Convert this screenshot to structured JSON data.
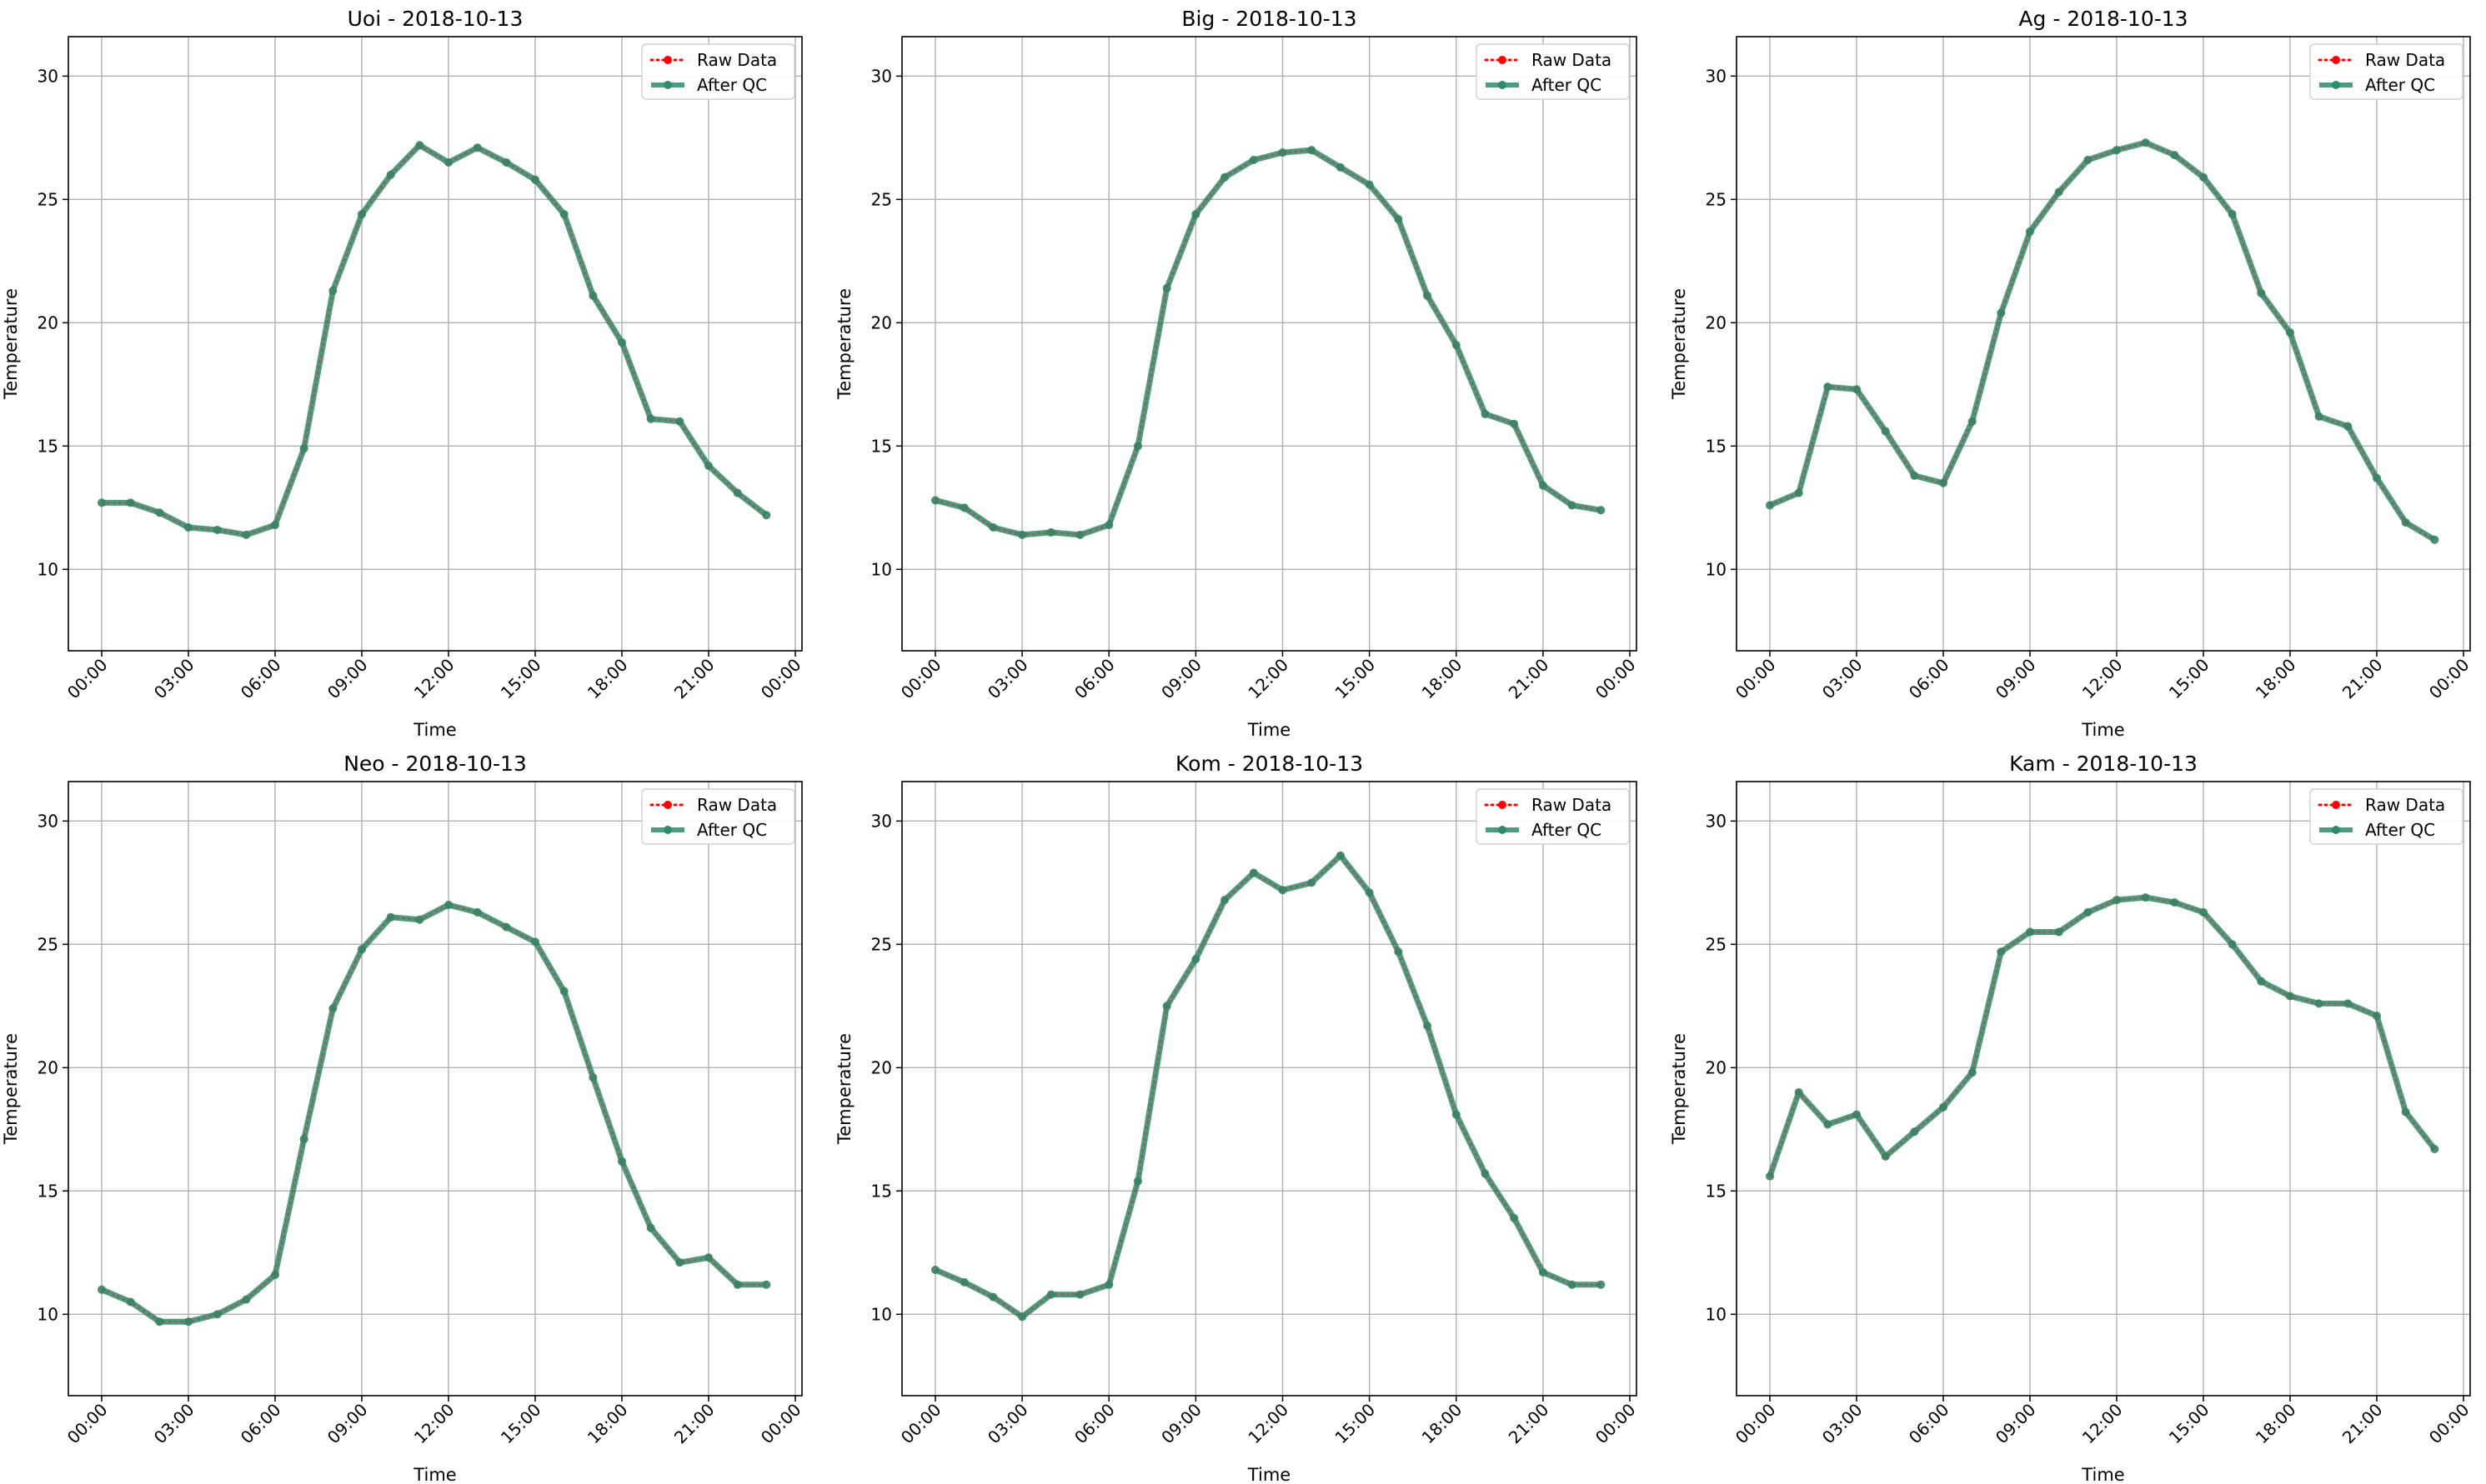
{
  "figure": {
    "background": "#ffffff",
    "raw_color": "#ff0000",
    "qc_color": "#2e8b6b",
    "grid_color": "#b0b0b0"
  },
  "chart_data": [
    {
      "type": "line",
      "title": "Uoi - 2018-10-13",
      "xlabel": "Time",
      "ylabel": "Temperature",
      "x": [
        "00:00",
        "01:00",
        "02:00",
        "03:00",
        "04:00",
        "05:00",
        "06:00",
        "07:00",
        "08:00",
        "09:00",
        "10:00",
        "11:00",
        "12:00",
        "13:00",
        "14:00",
        "15:00",
        "16:00",
        "17:00",
        "18:00",
        "19:00",
        "20:00",
        "21:00",
        "22:00",
        "23:00"
      ],
      "x_ticks": [
        "00:00",
        "03:00",
        "06:00",
        "09:00",
        "12:00",
        "15:00",
        "18:00",
        "21:00",
        "00:00"
      ],
      "y_ticks": [
        10,
        15,
        20,
        25,
        30
      ],
      "ylim": [
        6.7,
        31.6
      ],
      "grid": true,
      "legend_position": "top-right",
      "series": [
        {
          "name": "Raw Data",
          "style": "dotted",
          "values": [
            12.7,
            12.7,
            12.3,
            11.7,
            11.6,
            11.4,
            11.8,
            14.9,
            21.3,
            24.4,
            26.0,
            27.2,
            26.5,
            27.1,
            26.5,
            25.8,
            24.4,
            21.1,
            19.2,
            16.1,
            16.0,
            14.2,
            13.1,
            12.2
          ]
        },
        {
          "name": "After QC",
          "style": "solid",
          "values": [
            12.7,
            12.7,
            12.3,
            11.7,
            11.6,
            11.4,
            11.8,
            14.9,
            21.3,
            24.4,
            26.0,
            27.2,
            26.5,
            27.1,
            26.5,
            25.8,
            24.4,
            21.1,
            19.2,
            16.1,
            16.0,
            14.2,
            13.1,
            12.2
          ]
        }
      ]
    },
    {
      "type": "line",
      "title": "Big - 2018-10-13",
      "xlabel": "Time",
      "ylabel": "Temperature",
      "x": [
        "00:00",
        "01:00",
        "02:00",
        "03:00",
        "04:00",
        "05:00",
        "06:00",
        "07:00",
        "08:00",
        "09:00",
        "10:00",
        "11:00",
        "12:00",
        "13:00",
        "14:00",
        "15:00",
        "16:00",
        "17:00",
        "18:00",
        "19:00",
        "20:00",
        "21:00",
        "22:00",
        "23:00"
      ],
      "x_ticks": [
        "00:00",
        "03:00",
        "06:00",
        "09:00",
        "12:00",
        "15:00",
        "18:00",
        "21:00",
        "00:00"
      ],
      "y_ticks": [
        10,
        15,
        20,
        25,
        30
      ],
      "ylim": [
        6.7,
        31.6
      ],
      "grid": true,
      "legend_position": "top-right",
      "series": [
        {
          "name": "Raw Data",
          "style": "dotted",
          "values": [
            12.8,
            12.5,
            11.7,
            11.4,
            11.5,
            11.4,
            11.8,
            15.0,
            21.4,
            24.4,
            25.9,
            26.6,
            26.9,
            27.0,
            26.3,
            25.6,
            24.2,
            21.1,
            19.1,
            16.3,
            15.9,
            13.4,
            12.6,
            12.4
          ]
        },
        {
          "name": "After QC",
          "style": "solid",
          "values": [
            12.8,
            12.5,
            11.7,
            11.4,
            11.5,
            11.4,
            11.8,
            15.0,
            21.4,
            24.4,
            25.9,
            26.6,
            26.9,
            27.0,
            26.3,
            25.6,
            24.2,
            21.1,
            19.1,
            16.3,
            15.9,
            13.4,
            12.6,
            12.4
          ]
        }
      ]
    },
    {
      "type": "line",
      "title": "Ag - 2018-10-13",
      "xlabel": "Time",
      "ylabel": "Temperature",
      "x": [
        "00:00",
        "01:00",
        "02:00",
        "03:00",
        "04:00",
        "05:00",
        "06:00",
        "07:00",
        "08:00",
        "09:00",
        "10:00",
        "11:00",
        "12:00",
        "13:00",
        "14:00",
        "15:00",
        "16:00",
        "17:00",
        "18:00",
        "19:00",
        "20:00",
        "21:00",
        "22:00",
        "23:00"
      ],
      "x_ticks": [
        "00:00",
        "03:00",
        "06:00",
        "09:00",
        "12:00",
        "15:00",
        "18:00",
        "21:00",
        "00:00"
      ],
      "y_ticks": [
        10,
        15,
        20,
        25,
        30
      ],
      "ylim": [
        6.7,
        31.6
      ],
      "grid": true,
      "legend_position": "top-right",
      "series": [
        {
          "name": "Raw Data",
          "style": "dotted",
          "values": [
            12.6,
            13.1,
            17.4,
            17.3,
            15.6,
            13.8,
            13.5,
            16.0,
            20.4,
            23.7,
            25.3,
            26.6,
            27.0,
            27.3,
            26.8,
            25.9,
            24.4,
            21.2,
            19.6,
            16.2,
            15.8,
            13.7,
            11.9,
            11.2
          ]
        },
        {
          "name": "After QC",
          "style": "solid",
          "values": [
            12.6,
            13.1,
            17.4,
            17.3,
            15.6,
            13.8,
            13.5,
            16.0,
            20.4,
            23.7,
            25.3,
            26.6,
            27.0,
            27.3,
            26.8,
            25.9,
            24.4,
            21.2,
            19.6,
            16.2,
            15.8,
            13.7,
            11.9,
            11.2
          ]
        }
      ]
    },
    {
      "type": "line",
      "title": "Neo - 2018-10-13",
      "xlabel": "Time",
      "ylabel": "Temperature",
      "x": [
        "00:00",
        "01:00",
        "02:00",
        "03:00",
        "04:00",
        "05:00",
        "06:00",
        "07:00",
        "08:00",
        "09:00",
        "10:00",
        "11:00",
        "12:00",
        "13:00",
        "14:00",
        "15:00",
        "16:00",
        "17:00",
        "18:00",
        "19:00",
        "20:00",
        "21:00",
        "22:00",
        "23:00"
      ],
      "x_ticks": [
        "00:00",
        "03:00",
        "06:00",
        "09:00",
        "12:00",
        "15:00",
        "18:00",
        "21:00",
        "00:00"
      ],
      "y_ticks": [
        10,
        15,
        20,
        25,
        30
      ],
      "ylim": [
        6.7,
        31.6
      ],
      "grid": true,
      "legend_position": "top-right",
      "series": [
        {
          "name": "Raw Data",
          "style": "dotted",
          "values": [
            11.0,
            10.5,
            9.7,
            9.7,
            10.0,
            10.6,
            11.6,
            17.1,
            22.4,
            24.8,
            26.1,
            26.0,
            26.6,
            26.3,
            25.7,
            25.1,
            23.1,
            19.6,
            16.2,
            13.5,
            12.1,
            12.3,
            11.2,
            11.2
          ]
        },
        {
          "name": "After QC",
          "style": "solid",
          "values": [
            11.0,
            10.5,
            9.7,
            9.7,
            10.0,
            10.6,
            11.6,
            17.1,
            22.4,
            24.8,
            26.1,
            26.0,
            26.6,
            26.3,
            25.7,
            25.1,
            23.1,
            19.6,
            16.2,
            13.5,
            12.1,
            12.3,
            11.2,
            11.2
          ]
        }
      ]
    },
    {
      "type": "line",
      "title": "Kom - 2018-10-13",
      "xlabel": "Time",
      "ylabel": "Temperature",
      "x": [
        "00:00",
        "01:00",
        "02:00",
        "03:00",
        "04:00",
        "05:00",
        "06:00",
        "07:00",
        "08:00",
        "09:00",
        "10:00",
        "11:00",
        "12:00",
        "13:00",
        "14:00",
        "15:00",
        "16:00",
        "17:00",
        "18:00",
        "19:00",
        "20:00",
        "21:00",
        "22:00",
        "23:00"
      ],
      "x_ticks": [
        "00:00",
        "03:00",
        "06:00",
        "09:00",
        "12:00",
        "15:00",
        "18:00",
        "21:00",
        "00:00"
      ],
      "y_ticks": [
        10,
        15,
        20,
        25,
        30
      ],
      "ylim": [
        6.7,
        31.6
      ],
      "grid": true,
      "legend_position": "top-right",
      "series": [
        {
          "name": "Raw Data",
          "style": "dotted",
          "values": [
            11.8,
            11.3,
            10.7,
            9.9,
            10.8,
            10.8,
            11.2,
            15.4,
            22.5,
            24.4,
            26.8,
            27.9,
            27.2,
            27.5,
            28.6,
            27.1,
            24.7,
            21.7,
            18.1,
            15.7,
            13.9,
            11.7,
            11.2,
            11.2
          ]
        },
        {
          "name": "After QC",
          "style": "solid",
          "values": [
            11.8,
            11.3,
            10.7,
            9.9,
            10.8,
            10.8,
            11.2,
            15.4,
            22.5,
            24.4,
            26.8,
            27.9,
            27.2,
            27.5,
            28.6,
            27.1,
            24.7,
            21.7,
            18.1,
            15.7,
            13.9,
            11.7,
            11.2,
            11.2
          ]
        }
      ]
    },
    {
      "type": "line",
      "title": "Kam - 2018-10-13",
      "xlabel": "Time",
      "ylabel": "Temperature",
      "x": [
        "00:00",
        "01:00",
        "02:00",
        "03:00",
        "04:00",
        "05:00",
        "06:00",
        "07:00",
        "08:00",
        "09:00",
        "10:00",
        "11:00",
        "12:00",
        "13:00",
        "14:00",
        "15:00",
        "16:00",
        "17:00",
        "18:00",
        "19:00",
        "20:00",
        "21:00",
        "22:00",
        "23:00"
      ],
      "x_ticks": [
        "00:00",
        "03:00",
        "06:00",
        "09:00",
        "12:00",
        "15:00",
        "18:00",
        "21:00",
        "00:00"
      ],
      "y_ticks": [
        10,
        15,
        20,
        25,
        30
      ],
      "ylim": [
        6.7,
        31.6
      ],
      "grid": true,
      "legend_position": "top-right",
      "series": [
        {
          "name": "Raw Data",
          "style": "dotted",
          "values": [
            15.6,
            19.0,
            17.7,
            18.1,
            16.4,
            17.4,
            18.4,
            19.8,
            24.7,
            25.5,
            25.5,
            26.3,
            26.8,
            26.9,
            26.7,
            26.3,
            25.0,
            23.5,
            22.9,
            22.6,
            22.6,
            22.1,
            18.2,
            16.7
          ]
        },
        {
          "name": "After QC",
          "style": "solid",
          "values": [
            15.6,
            19.0,
            17.7,
            18.1,
            16.4,
            17.4,
            18.4,
            19.8,
            24.7,
            25.5,
            25.5,
            26.3,
            26.8,
            26.9,
            26.7,
            26.3,
            25.0,
            23.5,
            22.9,
            22.6,
            22.6,
            22.1,
            18.2,
            16.7
          ]
        }
      ]
    }
  ]
}
